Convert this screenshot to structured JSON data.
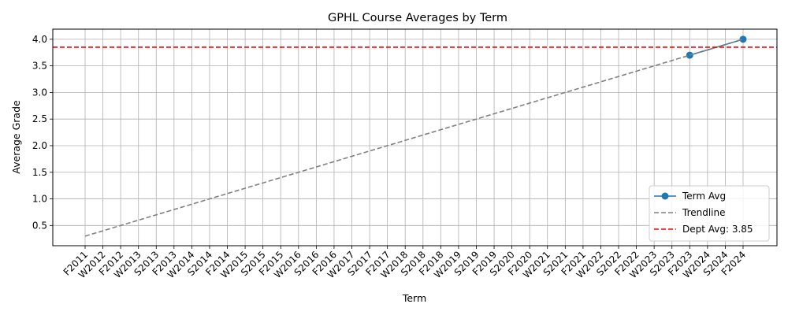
{
  "chart_data": {
    "type": "line",
    "title": "GPHL Course Averages by Term",
    "xlabel": "Term",
    "ylabel": "Average Grade",
    "categories": [
      "F2011",
      "W2012",
      "F2012",
      "W2013",
      "S2013",
      "F2013",
      "W2014",
      "S2014",
      "F2014",
      "W2015",
      "S2015",
      "F2015",
      "W2016",
      "S2016",
      "F2016",
      "W2017",
      "S2017",
      "F2017",
      "W2018",
      "S2018",
      "F2018",
      "W2019",
      "S2019",
      "F2019",
      "S2020",
      "F2020",
      "W2021",
      "S2021",
      "F2021",
      "W2022",
      "S2022",
      "F2022",
      "W2023",
      "S2023",
      "F2023",
      "W2024",
      "S2024",
      "F2024"
    ],
    "y_ticks": [
      "0.5",
      "1.0",
      "1.5",
      "2.0",
      "2.5",
      "3.0",
      "3.5",
      "4.0"
    ],
    "ylim": [
      0.12,
      4.19
    ],
    "grid": true,
    "legend_position": "lower-right",
    "series": [
      {
        "name": "Term Avg",
        "kind": "line-marker",
        "color": "#1f77b4",
        "points": [
          {
            "x": "F2023",
            "y": 3.7
          },
          {
            "x": "F2024",
            "y": 4.0
          }
        ]
      },
      {
        "name": "Trendline",
        "kind": "dashed-line",
        "color": "#808080",
        "points": [
          {
            "x": "F2011",
            "y": 0.3
          },
          {
            "x": "F2024",
            "y": 4.0
          }
        ]
      },
      {
        "name": "Dept Avg: 3.85",
        "kind": "hline-dashed",
        "color": "#ff0000",
        "y": 3.85
      }
    ]
  }
}
